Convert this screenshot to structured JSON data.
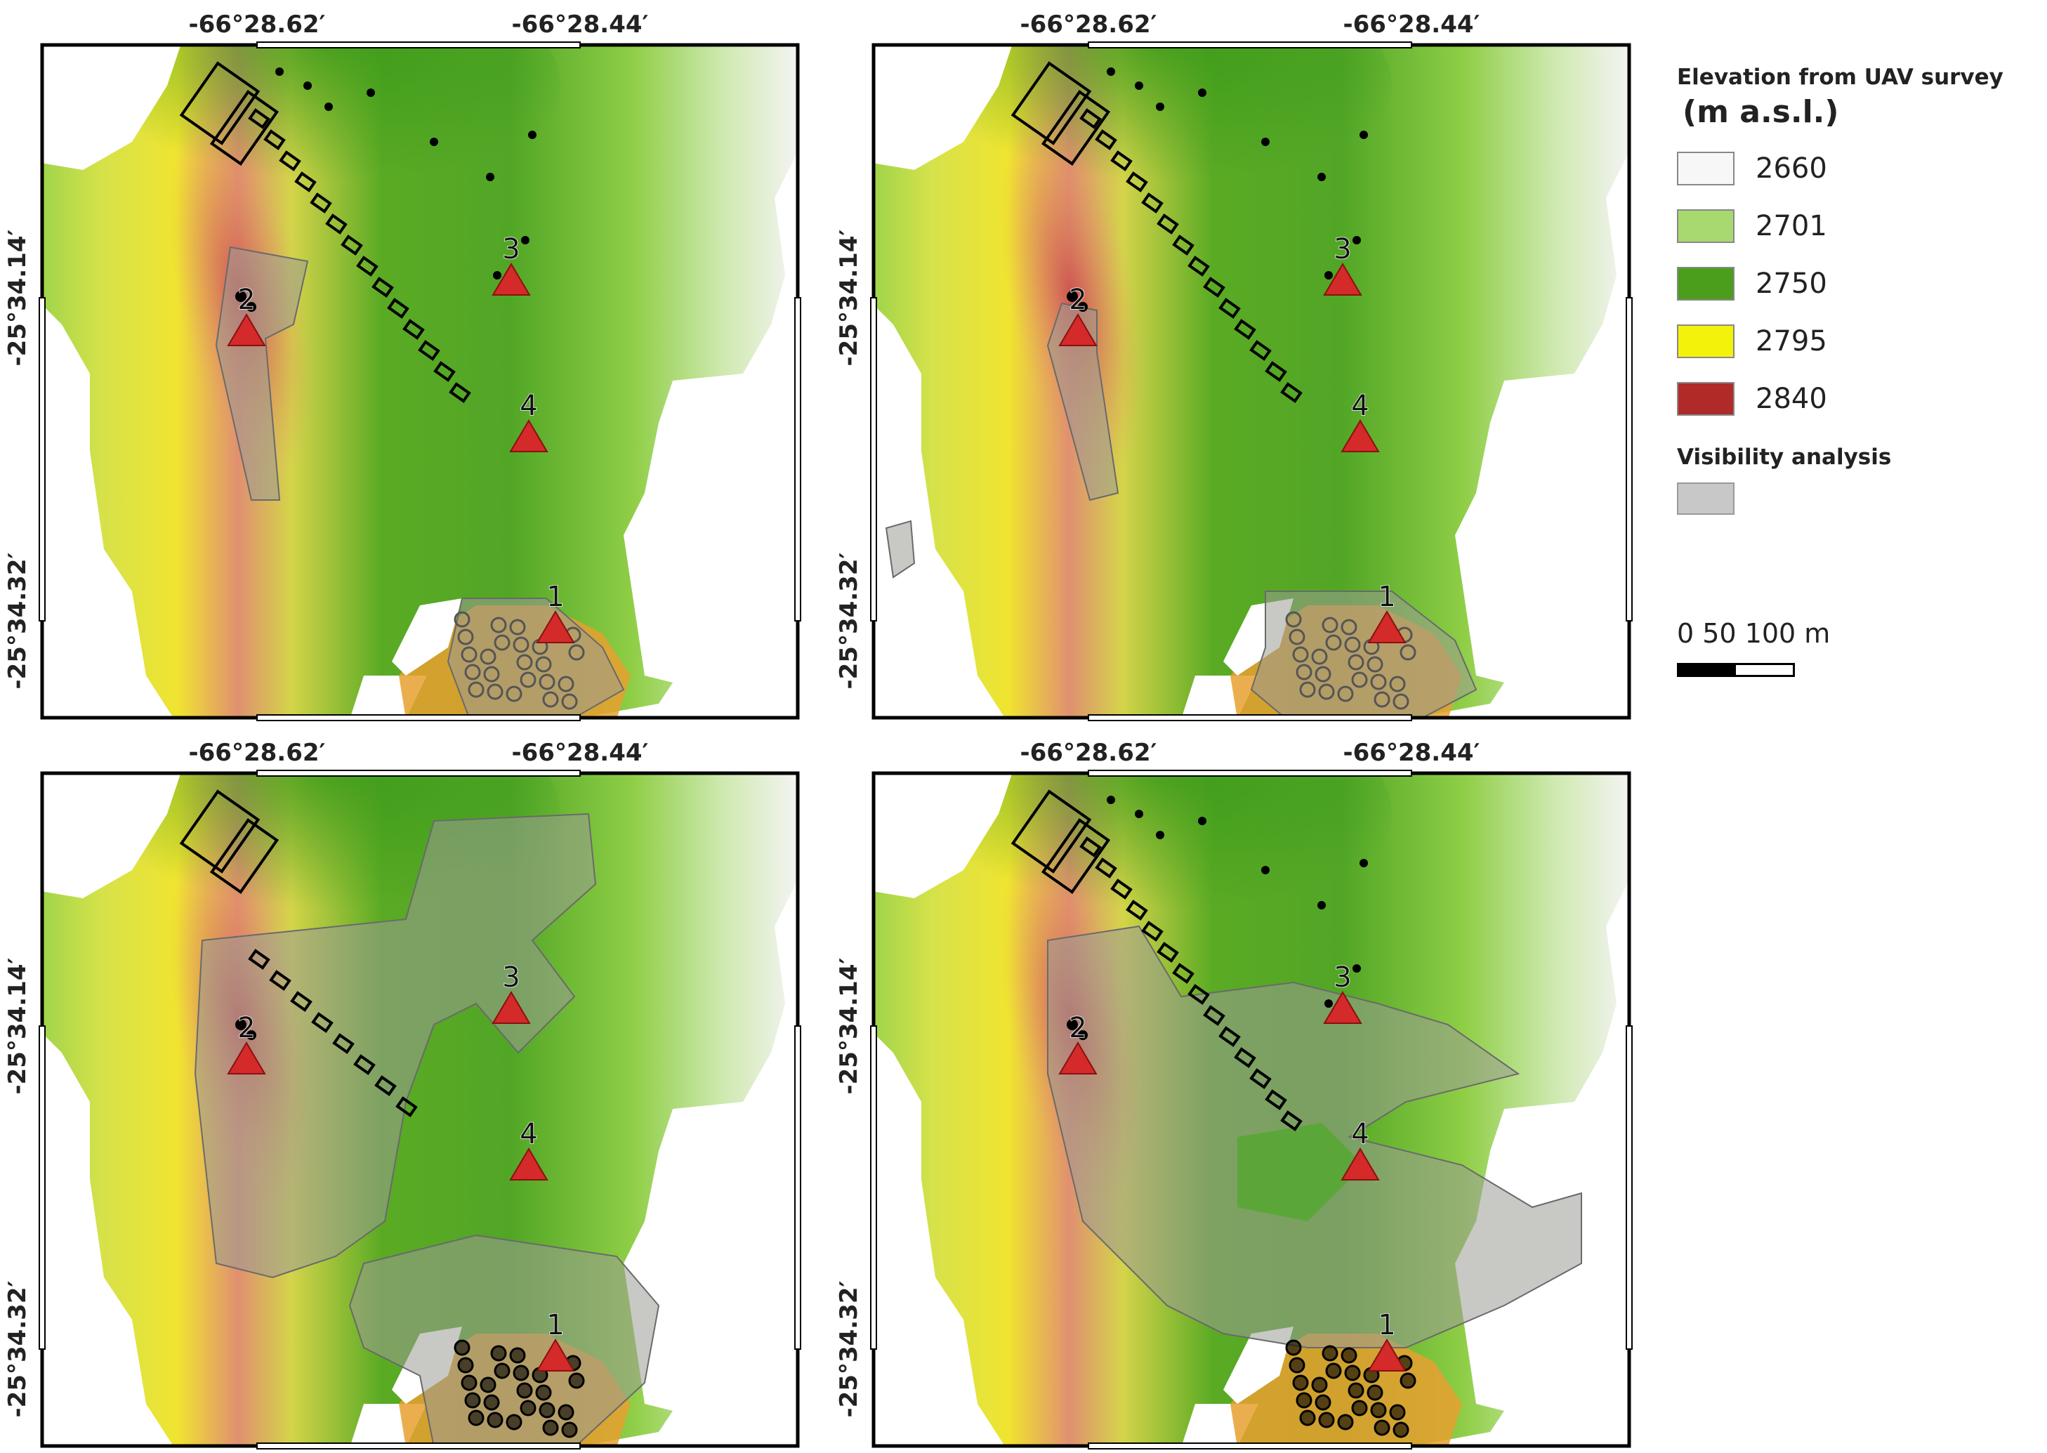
{
  "lon_labels": [
    "-66°28.62′",
    "-66°28.44′"
  ],
  "lat_labels": [
    "-25°34.14′",
    "-25°34.32′"
  ],
  "panels": [
    {
      "id": "a",
      "markers": [
        "1",
        "2",
        "3",
        "4"
      ]
    },
    {
      "id": "b",
      "markers": [
        "1",
        "2",
        "3",
        "4"
      ]
    },
    {
      "id": "c",
      "markers": [
        "1",
        "2",
        "3",
        "4"
      ]
    },
    {
      "id": "d",
      "markers": [
        "1",
        "2",
        "3",
        "4"
      ]
    }
  ],
  "legend": {
    "title": "Elevation from UAV survey",
    "unit": "(m a.s.l.)",
    "items": [
      {
        "value": "2660",
        "color": "#f7f7f7"
      },
      {
        "value": "2701",
        "color": "#a8d870"
      },
      {
        "value": "2750",
        "color": "#4a9e1c"
      },
      {
        "value": "2795",
        "color": "#f2f20a"
      },
      {
        "value": "2840",
        "color": "#b02a2a"
      }
    ],
    "visibility_title": "Visibility analysis",
    "visibility_color": "#c8c8c8"
  },
  "scale": {
    "labels": "0   50  100 m"
  },
  "colors": {
    "marker": "#d42a2a",
    "visibility": "#9a9a96",
    "orange_zone": "#e8a030"
  }
}
